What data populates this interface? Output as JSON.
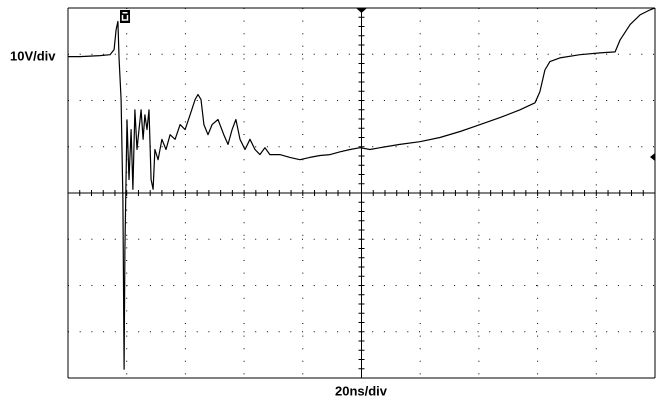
{
  "chart_data": {
    "type": "line",
    "y_label": "10V/div",
    "x_label": "20ns/div",
    "xlim": [
      0,
      200
    ],
    "ylim": [
      -40,
      40
    ],
    "xticks": [
      0,
      20,
      40,
      60,
      80,
      100,
      120,
      140,
      160,
      180,
      200
    ],
    "yticks": [
      -40,
      -30,
      -20,
      -10,
      0,
      10,
      20,
      30,
      40
    ],
    "grid": true,
    "color": "#000000",
    "x": [
      0,
      4.1,
      10.9,
      14.3,
      15.7,
      16.4,
      17.0,
      17.4,
      18.1,
      18.7,
      19.1,
      19.4,
      20.1,
      20.8,
      21.5,
      22.1,
      22.8,
      23.5,
      24.2,
      24.9,
      25.6,
      26.2,
      26.9,
      27.6,
      28.3,
      29.0,
      29.6,
      30.7,
      32.0,
      33.4,
      34.8,
      36.5,
      38.2,
      39.9,
      41.6,
      43.3,
      44.3,
      45.3,
      46.3,
      47.7,
      49.1,
      51.1,
      53.1,
      54.5,
      55.9,
      57.2,
      58.6,
      60.3,
      62.0,
      63.7,
      65.4,
      67.1,
      68.8,
      72.2,
      75.6,
      79.0,
      82.4,
      85.9,
      89.3,
      92.7,
      96.1,
      99.5,
      102.9,
      106.3,
      113.1,
      119.9,
      126.7,
      133.6,
      140.4,
      147.2,
      154.0,
      159.1,
      160.8,
      162.5,
      164.2,
      167.6,
      174.4,
      181.3,
      186.4,
      188.1,
      191.5,
      194.9,
      198.3,
      200.0
    ],
    "values": [
      29.5,
      29.5,
      29.7,
      29.9,
      31.0,
      35.3,
      37.1,
      28.9,
      20.2,
      -1.4,
      -38.1,
      -12.4,
      15.8,
      2.9,
      13.7,
      0.8,
      18.0,
      9.4,
      13.7,
      18.0,
      11.6,
      16.9,
      13.7,
      18.0,
      2.9,
      0.8,
      9.4,
      7.2,
      11.6,
      9.4,
      12.6,
      11.6,
      14.8,
      13.7,
      16.9,
      20.2,
      21.3,
      20.2,
      14.8,
      12.6,
      14.8,
      15.9,
      12.6,
      10.5,
      13.7,
      15.9,
      11.6,
      9.4,
      11.6,
      9.4,
      8.3,
      9.8,
      8.3,
      8.3,
      7.7,
      7.2,
      7.7,
      8.1,
      8.3,
      8.9,
      9.4,
      9.8,
      9.4,
      9.8,
      10.5,
      11.1,
      12.0,
      13.3,
      14.8,
      16.3,
      18.0,
      19.5,
      21.9,
      26.6,
      28.4,
      29.2,
      29.9,
      30.3,
      30.5,
      33.1,
      36.4,
      38.5,
      39.6,
      40.0
    ]
  }
}
